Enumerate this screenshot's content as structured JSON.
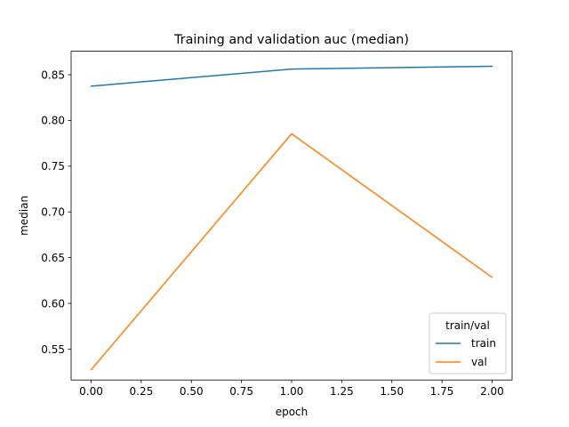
{
  "chart_data": {
    "type": "line",
    "title": "Training and validation auc (median)",
    "xlabel": "epoch",
    "ylabel": "median",
    "xlim": [
      -0.1,
      2.1
    ],
    "ylim": [
      0.5162,
      0.8757
    ],
    "xticks": [
      0.0,
      0.25,
      0.5,
      0.75,
      1.0,
      1.25,
      1.5,
      1.75,
      2.0
    ],
    "xtick_labels": [
      "0.00",
      "0.25",
      "0.50",
      "0.75",
      "1.00",
      "1.25",
      "1.50",
      "1.75",
      "2.00"
    ],
    "yticks": [
      0.55,
      0.6,
      0.65,
      0.7,
      0.75,
      0.8,
      0.85
    ],
    "ytick_labels": [
      "0.55",
      "0.60",
      "0.65",
      "0.70",
      "0.75",
      "0.80",
      "0.85"
    ],
    "grid": false,
    "legend": {
      "title": "train/val",
      "placement": "lower-right"
    },
    "series": [
      {
        "name": "train",
        "color": "#1f77b4",
        "x": [
          0,
          1,
          2
        ],
        "values": [
          0.8375,
          0.8562,
          0.8592
        ]
      },
      {
        "name": "val",
        "color": "#ff7f0e",
        "x": [
          0,
          1,
          2
        ],
        "values": [
          0.5275,
          0.7855,
          0.6285
        ]
      }
    ]
  }
}
